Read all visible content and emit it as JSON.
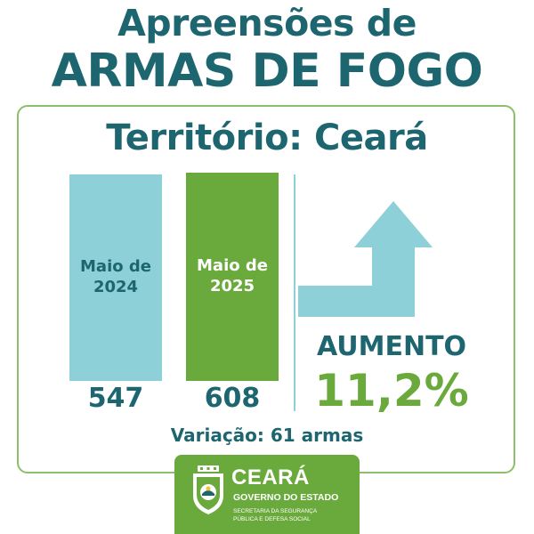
{
  "header": {
    "title_line1": "Apreensões de",
    "title_line2": "ARMAS DE FOGO"
  },
  "card": {
    "territory": "Território: Ceará",
    "trend_label": "AUMENTO",
    "trend_value": "11,2%",
    "variation": "Variação: 61 armas"
  },
  "chart_data": {
    "type": "bar",
    "categories": [
      "Maio de 2024",
      "Maio de 2025"
    ],
    "values": [
      547,
      608
    ],
    "value_labels": [
      "547",
      "608"
    ],
    "label_lines": [
      [
        "Maio de",
        "2024"
      ],
      [
        "Maio de",
        "2025"
      ]
    ],
    "colors": [
      "#8ed0d7",
      "#6aaa3c"
    ],
    "label_colors": [
      "#1d6670",
      "#ffffff"
    ],
    "title": "",
    "xlabel": "",
    "ylabel": ""
  },
  "footer": {
    "gov_name": "CEARÁ",
    "gov_sub": "GOVERNO DO ESTADO",
    "secretariat_line1": "SECRETARIA DA SEGURANÇA",
    "secretariat_line2": "PÚBLICA E DEFESA SOCIAL"
  },
  "colors": {
    "primary": "#1d6670",
    "accent_green": "#6aaa3c",
    "light_teal": "#8ed0d7",
    "border_green": "#8dbf6a"
  },
  "icons": {
    "arrow": "arrow-up-right-icon",
    "seal": "state-seal-icon"
  }
}
